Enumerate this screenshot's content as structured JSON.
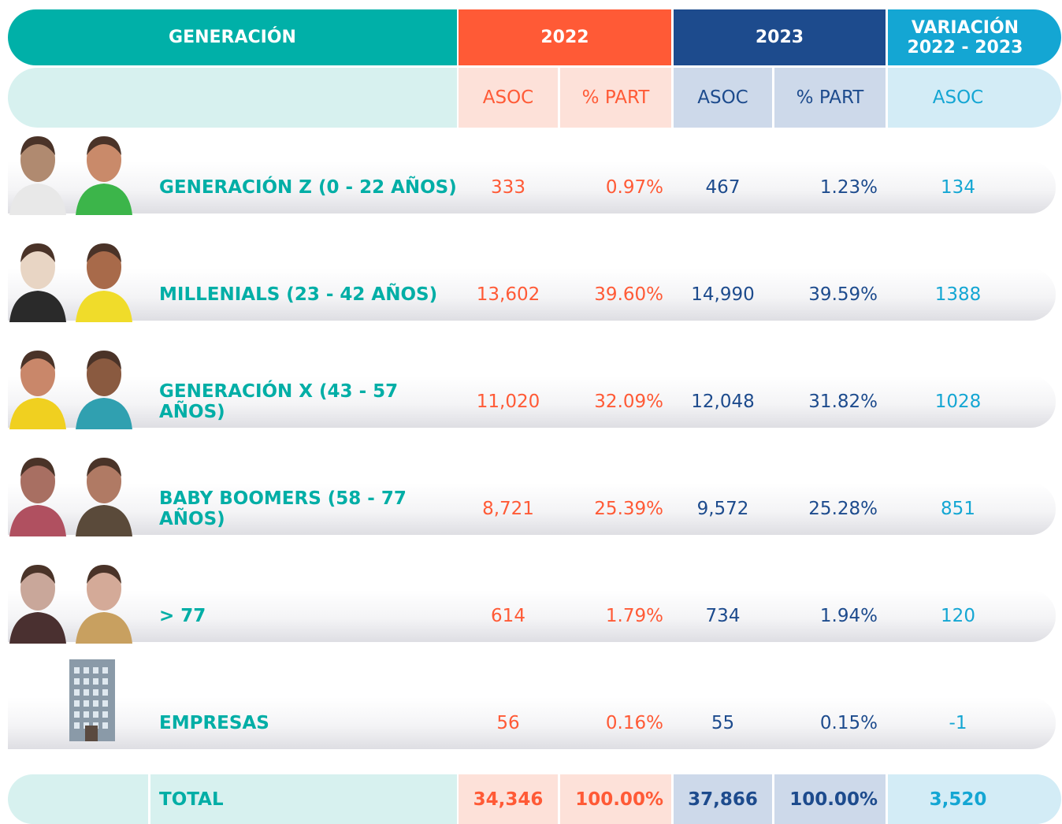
{
  "header": {
    "generation": "GENERACIÓN",
    "year_2022": "2022",
    "year_2023": "2023",
    "variation": [
      "VARIACIÓN",
      "2022 - 2023"
    ]
  },
  "subheader": [
    "ASOC",
    "% PART",
    "ASOC",
    "% PART",
    "ASOC"
  ],
  "table": {
    "rows": [
      [
        "GENERACIÓN Z (0 - 22 AÑOS)",
        "333",
        "0.97%",
        "467",
        "1.23%",
        "134"
      ],
      [
        "MILLENIALS (23 - 42 AÑOS)",
        "13,602",
        "39.60%",
        "14,990",
        "39.59%",
        "1388"
      ],
      [
        "GENERACIÓN X (43 - 57 AÑOS)",
        "11,020",
        "32.09%",
        "12,048",
        "31.82%",
        "1028"
      ],
      [
        "BABY BOOMERS (58 - 77 AÑOS)",
        "8,721",
        "25.39%",
        "9,572",
        "25.28%",
        "851"
      ],
      [
        "> 77",
        "614",
        "1.79%",
        "734",
        "1.94%",
        "120"
      ],
      [
        "EMPRESAS",
        "56",
        "0.16%",
        "55",
        "0.15%",
        "-1"
      ]
    ]
  },
  "total": [
    "TOTAL",
    "34,346",
    "100.00%",
    "37,866",
    "100.00%",
    "3,520"
  ]
}
